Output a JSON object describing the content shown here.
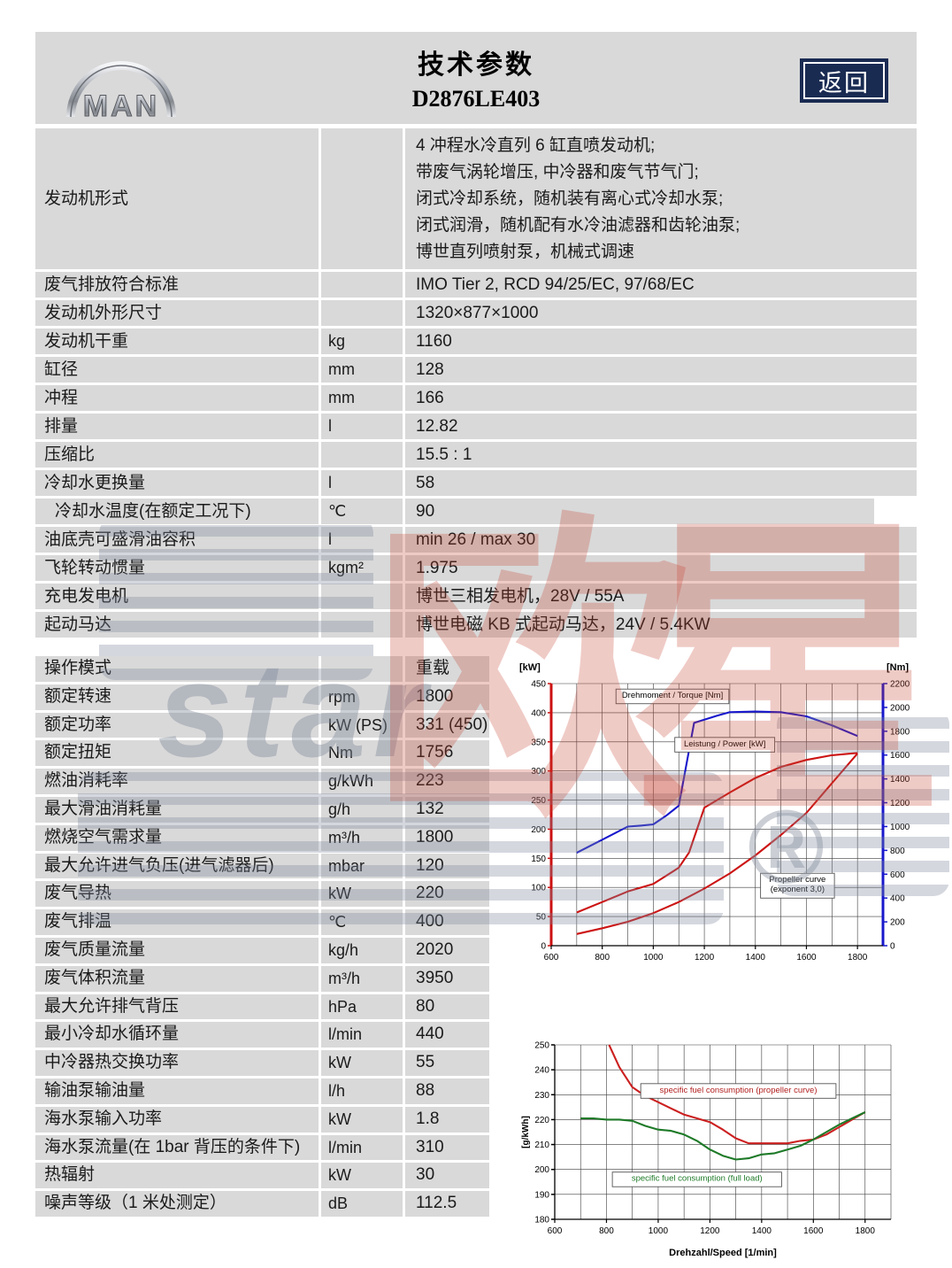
{
  "header": {
    "logo": "MAN",
    "title": "技术参数",
    "model": "D2876LE403",
    "back_button": "返回",
    "back_button_color": "#1a2b52"
  },
  "table1": {
    "rows": [
      {
        "label": "发动机形式",
        "unit": "",
        "value_lines": [
          "4 冲程水冷直列 6 缸直喷发动机;",
          "带废气涡轮增压, 中冷器和废气节气门;",
          "闭式冷却系统，随机装有离心式冷却水泵;",
          "闭式润滑，随机配有水冷油滤器和齿轮油泵;",
          "博世直列喷射泵，机械式调速"
        ]
      },
      {
        "label": "废气排放符合标准",
        "unit": "",
        "value": "IMO Tier 2, RCD 94/25/EC, 97/68/EC"
      },
      {
        "label": "发动机外形尺寸",
        "unit": "",
        "value": "1320×877×1000"
      },
      {
        "label": "发动机干重",
        "unit": "kg",
        "value": "1160"
      },
      {
        "label": "缸径",
        "unit": "mm",
        "value": "128"
      },
      {
        "label": "冲程",
        "unit": "mm",
        "value": "166"
      },
      {
        "label": "排量",
        "unit": "l",
        "value": "12.82"
      },
      {
        "label": "压缩比",
        "unit": "",
        "value": "15.5 : 1"
      },
      {
        "label": "冷却水更换量",
        "unit": "l",
        "value": "58"
      },
      {
        "label": "冷却水温度(在额定工况下)",
        "unit": "℃",
        "value": "90",
        "indent": true,
        "short": true
      },
      {
        "label": "油底壳可盛滑油容积",
        "unit": "l",
        "value": "min 26 / max 30"
      },
      {
        "label": "飞轮转动惯量",
        "unit": "kgm²",
        "value": "1.975"
      },
      {
        "label": "充电发电机",
        "unit": "",
        "value": "博世三相发电机，28V / 55A"
      },
      {
        "label": "起动马达",
        "unit": "",
        "value": "博世电磁 KB 式起动马达，24V / 5.4KW"
      }
    ]
  },
  "table2": {
    "rows": [
      {
        "label": "操作模式",
        "unit": "",
        "value": "重载"
      },
      {
        "label": "额定转速",
        "unit": "rpm",
        "value": "1800"
      },
      {
        "label": "额定功率",
        "unit": "kW (PS)",
        "value": "331 (450)"
      },
      {
        "label": "额定扭矩",
        "unit": "Nm",
        "value": "1756"
      },
      {
        "label": "燃油消耗率",
        "unit": "g/kWh",
        "value": "223"
      },
      {
        "label": "最大滑油消耗量",
        "unit": "g/h",
        "value": "132"
      },
      {
        "label": "燃烧空气需求量",
        "unit": "m³/h",
        "value": "1800"
      },
      {
        "label": "最大允许进气负压(进气滤器后)",
        "unit": "mbar",
        "value": "120"
      },
      {
        "label": "废气导热",
        "unit": "kW",
        "value": "220"
      },
      {
        "label": "废气排温",
        "unit": "℃",
        "value": "400"
      },
      {
        "label": "废气质量流量",
        "unit": "kg/h",
        "value": "2020"
      },
      {
        "label": "废气体积流量",
        "unit": "m³/h",
        "value": "3950"
      },
      {
        "label": "最大允许排气背压",
        "unit": "hPa",
        "value": "80"
      },
      {
        "label": "最小冷却水循环量",
        "unit": "l/min",
        "value": "440"
      },
      {
        "label": "中冷器热交换功率",
        "unit": "kW",
        "value": "55"
      },
      {
        "label": "输油泵输油量",
        "unit": "l/h",
        "value": "88"
      },
      {
        "label": "海水泵输入功率",
        "unit": "kW",
        "value": "1.8"
      },
      {
        "label": "海水泵流量(在 1bar 背压的条件下)",
        "unit": "l/min",
        "value": "310"
      },
      {
        "label": "热辐射",
        "unit": "kW",
        "value": "30"
      },
      {
        "label": "噪声等级（1 米处测定）",
        "unit": "dB",
        "value": "112.5"
      }
    ]
  },
  "watermark": {
    "cjk": "欧星",
    "latin": "star",
    "registered": "®"
  },
  "chart_data": [
    {
      "type": "line",
      "title": "Power / Torque vs engine speed",
      "xlim": [
        600,
        1900
      ],
      "x_grid_step": 100,
      "x_label_step": 200,
      "xlabel": "",
      "grid": true,
      "legend_position": "inline-boxes",
      "left_axis": {
        "label": "[kW]",
        "lim": [
          0,
          450
        ],
        "tick_step": 50,
        "color": "#cc1111"
      },
      "right_axis": {
        "label": "[Nm]",
        "lim": [
          0,
          2200
        ],
        "tick_step": 200,
        "color": "#1818cc"
      },
      "series": [
        {
          "name": "Drehmoment / Torque [Nm]",
          "axis": "right",
          "color": "#1818cc",
          "points": [
            [
              700,
              780
            ],
            [
              800,
              890
            ],
            [
              900,
              1000
            ],
            [
              950,
              1008
            ],
            [
              1000,
              1018
            ],
            [
              1050,
              1090
            ],
            [
              1100,
              1175
            ],
            [
              1160,
              1870
            ],
            [
              1250,
              1930
            ],
            [
              1300,
              1960
            ],
            [
              1400,
              1965
            ],
            [
              1500,
              1960
            ],
            [
              1600,
              1925
            ],
            [
              1700,
              1850
            ],
            [
              1800,
              1760
            ]
          ]
        },
        {
          "name": "Leistung / Power [kW]",
          "axis": "left",
          "color": "#cc1414",
          "points": [
            [
              700,
              57
            ],
            [
              800,
              75
            ],
            [
              900,
              93
            ],
            [
              1000,
              106
            ],
            [
              1100,
              134
            ],
            [
              1140,
              160
            ],
            [
              1200,
              237
            ],
            [
              1300,
              263
            ],
            [
              1400,
              288
            ],
            [
              1500,
              307
            ],
            [
              1600,
              319
            ],
            [
              1700,
              327
            ],
            [
              1800,
              331
            ]
          ]
        },
        {
          "name": "Propeller curve (exponent 3,0)",
          "axis": "left",
          "color": "#cc1414",
          "points": [
            [
              700,
              20
            ],
            [
              800,
              30
            ],
            [
              900,
              41
            ],
            [
              1000,
              56
            ],
            [
              1100,
              75
            ],
            [
              1200,
              98
            ],
            [
              1300,
              124
            ],
            [
              1400,
              155
            ],
            [
              1500,
              190
            ],
            [
              1600,
              228
            ],
            [
              1700,
              279
            ],
            [
              1800,
              330
            ]
          ]
        }
      ],
      "annotations": [
        {
          "text": [
            "Drehmoment / Torque [Nm]"
          ],
          "x": 1075,
          "y": 428,
          "color": "#000000"
        },
        {
          "text": [
            "Leistung / Power [kW]"
          ],
          "x": 1280,
          "y": 345,
          "color": "#000000"
        },
        {
          "text": [
            "Propeller curve",
            "(exponent 3,0)"
          ],
          "x": 1565,
          "y": 103,
          "color": "#000000"
        }
      ]
    },
    {
      "type": "line",
      "title": "Specific fuel consumption vs engine speed",
      "xlim": [
        600,
        1900
      ],
      "x_grid_step": 100,
      "x_label_step": 200,
      "xlabel": "Drehzahl/Speed [1/min]",
      "grid": true,
      "legend_position": "inline-boxes",
      "left_axis": {
        "label": "[g/kWh]",
        "lim": [
          180,
          250
        ],
        "tick_step": 10,
        "color": "#000000",
        "rotated": true
      },
      "series": [
        {
          "name": "specific fuel consumption (propeller curve)",
          "axis": "left",
          "color": "#cc2020",
          "points": [
            [
              810,
              250
            ],
            [
              850,
              241
            ],
            [
              900,
              233
            ],
            [
              950,
              229.5
            ],
            [
              1000,
              227
            ],
            [
              1050,
              224.5
            ],
            [
              1100,
              222
            ],
            [
              1150,
              220.5
            ],
            [
              1200,
              219
            ],
            [
              1250,
              216
            ],
            [
              1300,
              212.5
            ],
            [
              1350,
              210.5
            ],
            [
              1400,
              210.5
            ],
            [
              1450,
              210.5
            ],
            [
              1500,
              210.5
            ],
            [
              1550,
              211.5
            ],
            [
              1600,
              212
            ],
            [
              1650,
              214
            ],
            [
              1700,
              217
            ],
            [
              1750,
              220
            ],
            [
              1800,
              223
            ]
          ]
        },
        {
          "name": "specific fuel consumption (full load)",
          "axis": "left",
          "color": "#1e7a28",
          "points": [
            [
              700,
              220.5
            ],
            [
              750,
              220.5
            ],
            [
              800,
              220
            ],
            [
              850,
              220
            ],
            [
              900,
              219.5
            ],
            [
              950,
              217.5
            ],
            [
              1000,
              216
            ],
            [
              1050,
              215.5
            ],
            [
              1100,
              214
            ],
            [
              1150,
              211.5
            ],
            [
              1200,
              208
            ],
            [
              1250,
              205.5
            ],
            [
              1300,
              204
            ],
            [
              1350,
              204.5
            ],
            [
              1400,
              206
            ],
            [
              1450,
              206.5
            ],
            [
              1500,
              208
            ],
            [
              1550,
              209.5
            ],
            [
              1600,
              212
            ],
            [
              1650,
              215
            ],
            [
              1700,
              218
            ],
            [
              1750,
              220.5
            ],
            [
              1800,
              223
            ]
          ]
        }
      ],
      "annotations": [
        {
          "text": [
            "specific fuel consumption (propeller curve)"
          ],
          "x": 1310,
          "y": 231.5,
          "color": "#b22020"
        },
        {
          "text": [
            "specific fuel consumption (full load)"
          ],
          "x": 1150,
          "y": 196,
          "color": "#1e7a28"
        }
      ]
    }
  ]
}
